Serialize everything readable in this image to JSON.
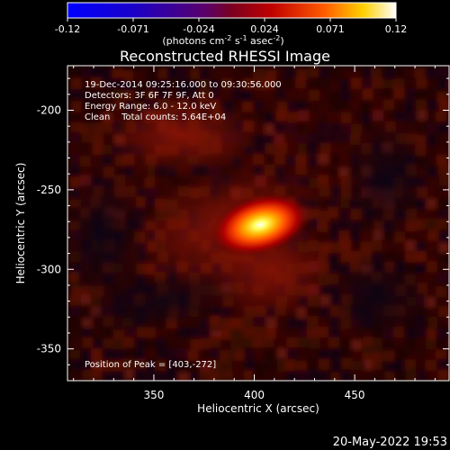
{
  "chart_data": {
    "type": "heatmap",
    "title": "Reconstructed RHESSI Image",
    "xlabel": "Heliocentric X (arcsec)",
    "ylabel": "Heliocentric Y (arcsec)",
    "xlim": [
      307,
      497
    ],
    "ylim": [
      -370,
      -172
    ],
    "x_ticks": [
      350,
      400,
      450
    ],
    "y_ticks": [
      -200,
      -250,
      -300,
      -350
    ],
    "colorbar": {
      "ticks": [
        "-0.12",
        "-0.071",
        "-0.024",
        "0.024",
        "0.071",
        "0.12"
      ],
      "range": [
        -0.12,
        0.12
      ],
      "units_prefix": "(photons cm",
      "units_sup1": "-2",
      "units_mid": " s",
      "units_sup2": "-1",
      "units_mid2": " asec",
      "units_sup3": "-2",
      "units_suffix": ")"
    },
    "annotations": {
      "line1": "19-Dec-2014 09:25:16.000 to 09:30:56.000",
      "line2": "Detectors: 3F 6F 7F 9F, Att 0",
      "line3": "Energy Range: 6.0 - 12.0 keV",
      "line4": "Clean    Total counts: 5.64E+04",
      "peak": "Position of Peak = [403,-272]"
    },
    "peak": {
      "x": 403,
      "y": -272,
      "value": 0.12
    },
    "timestamp": "20-May-2022 19:53"
  }
}
